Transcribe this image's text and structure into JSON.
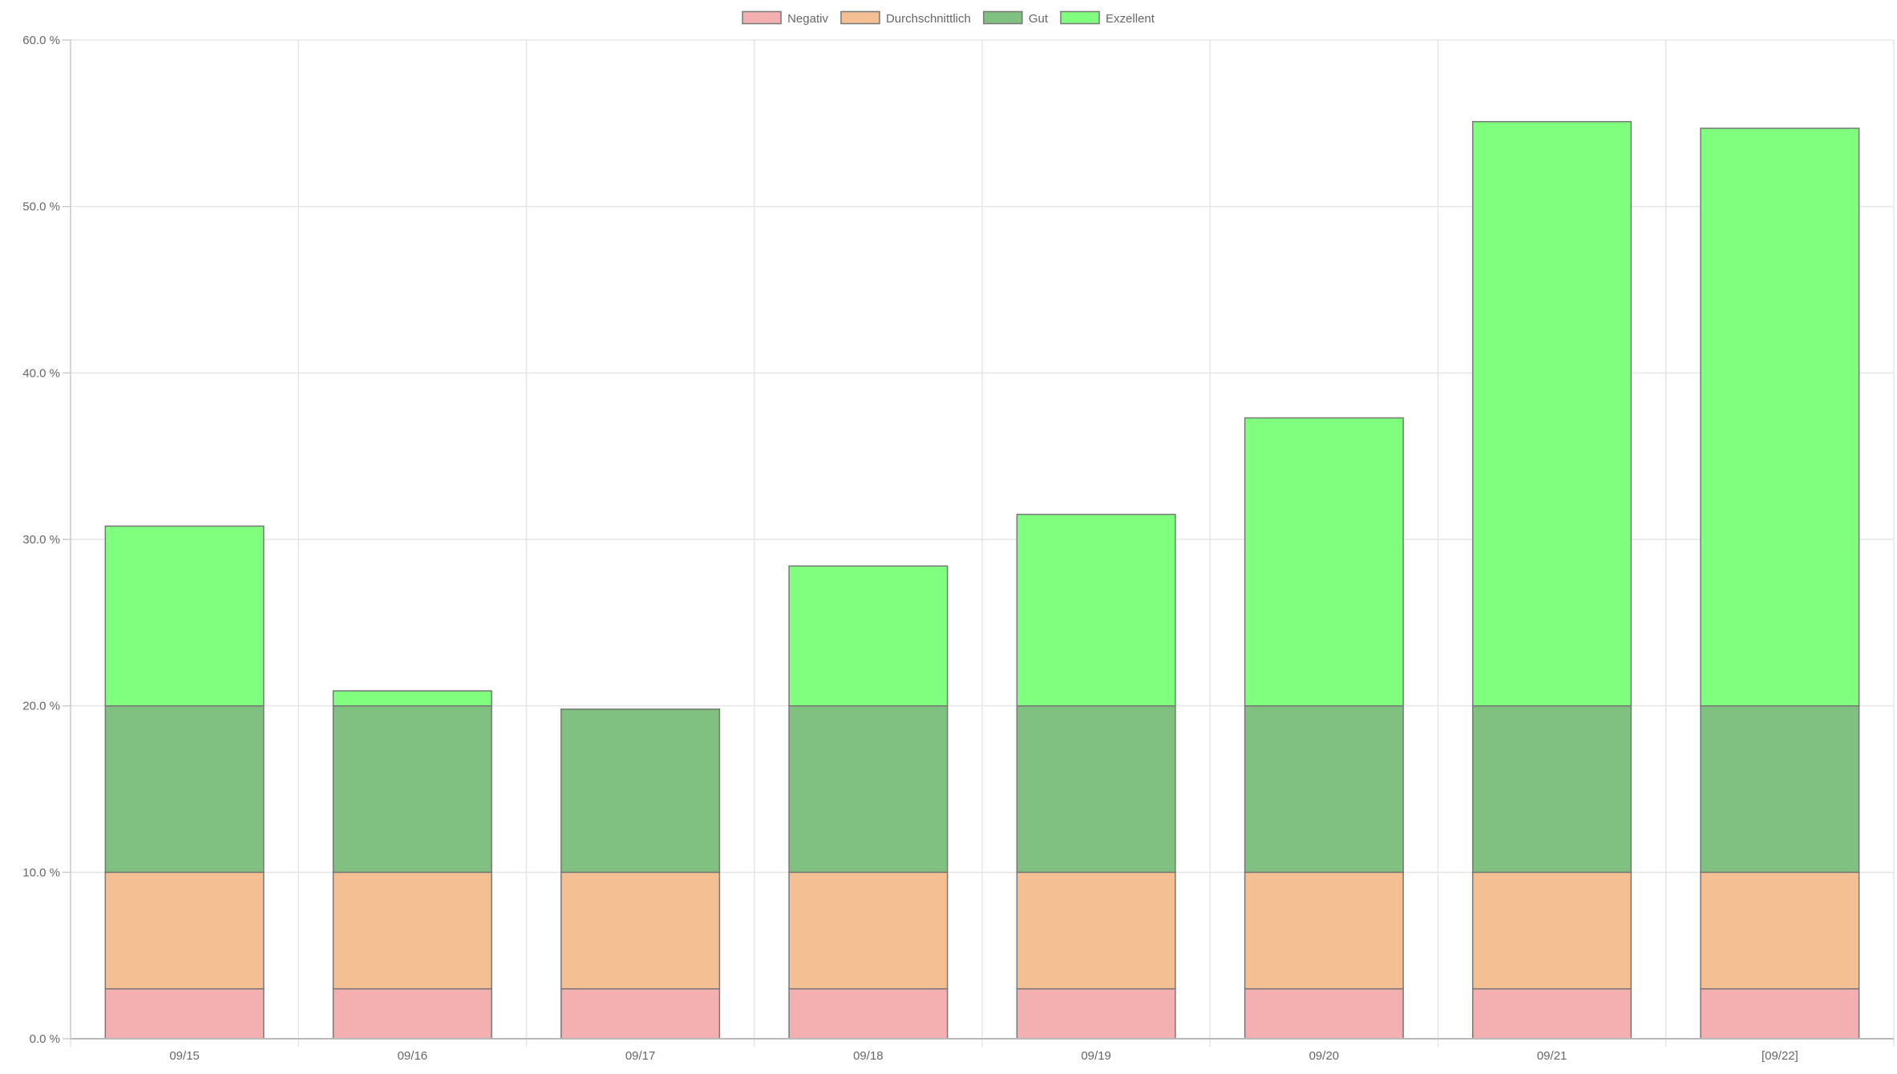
{
  "chart_data": {
    "type": "bar",
    "stacked": true,
    "title": "",
    "xlabel": "",
    "ylabel": "",
    "ylim": [
      0,
      60
    ],
    "y_ticks": [
      0,
      10,
      20,
      30,
      40,
      50,
      60
    ],
    "y_tick_labels": [
      "0.0 %",
      "10.0 %",
      "20.0 %",
      "30.0 %",
      "40.0 %",
      "50.0 %",
      "60.0 %"
    ],
    "grid": true,
    "legend_position": "top-center",
    "categories": [
      "09/15",
      "09/16",
      "09/17",
      "09/18",
      "09/19",
      "09/20",
      "09/21",
      "[09/22]"
    ],
    "series": [
      {
        "name": "Negativ",
        "color": "#f4b0b0",
        "values": [
          3,
          3,
          3,
          3,
          3,
          3,
          3,
          3
        ]
      },
      {
        "name": "Durchschnittlich",
        "color": "#f5bf94",
        "values": [
          7,
          7,
          7,
          7,
          7,
          7,
          7,
          7
        ]
      },
      {
        "name": "Gut",
        "color": "#80c080",
        "values": [
          10,
          10,
          9.8,
          10,
          10,
          10,
          10,
          10
        ]
      },
      {
        "name": "Exzellent",
        "color": "#80ff7e",
        "values": [
          10.8,
          0.9,
          0,
          8.4,
          11.5,
          17.3,
          35.1,
          34.7
        ]
      }
    ]
  }
}
